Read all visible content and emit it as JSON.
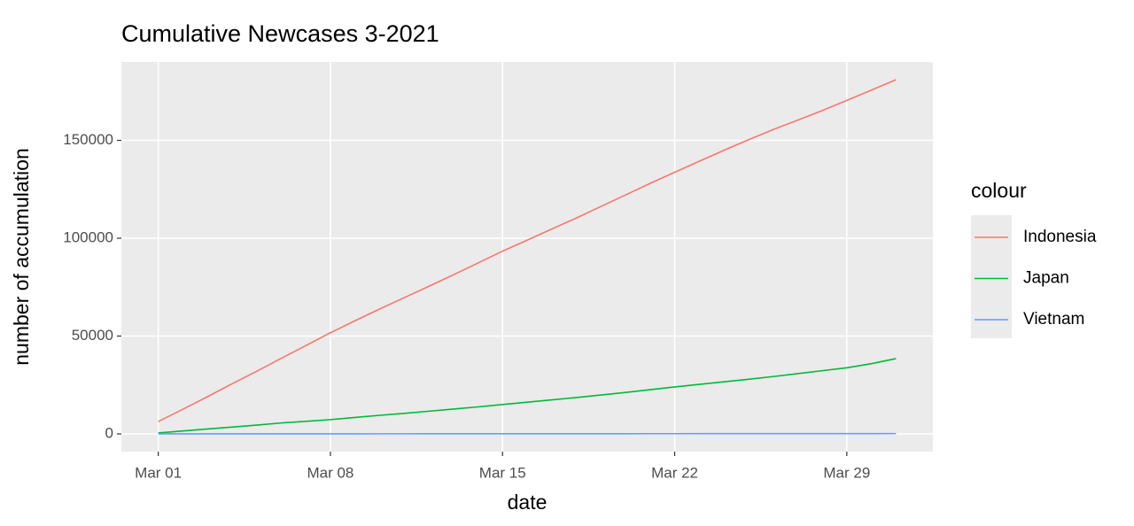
{
  "chart_data": {
    "type": "line",
    "title": "Cumulative Newcases 3-2021",
    "x_label": "date",
    "y_label": "number of accumulation",
    "legend_title": "colour",
    "x": [
      "Mar 01",
      "Mar 02",
      "Mar 03",
      "Mar 04",
      "Mar 05",
      "Mar 06",
      "Mar 07",
      "Mar 08",
      "Mar 09",
      "Mar 10",
      "Mar 11",
      "Mar 12",
      "Mar 13",
      "Mar 14",
      "Mar 15",
      "Mar 16",
      "Mar 17",
      "Mar 18",
      "Mar 19",
      "Mar 20",
      "Mar 21",
      "Mar 22",
      "Mar 23",
      "Mar 24",
      "Mar 25",
      "Mar 26",
      "Mar 27",
      "Mar 28",
      "Mar 29",
      "Mar 30",
      "Mar 31"
    ],
    "xticks": [
      "Mar 01",
      "Mar 08",
      "Mar 15",
      "Mar 22",
      "Mar 29"
    ],
    "ylim": [
      -9050,
      190050
    ],
    "yticks": [
      0,
      50000,
      100000,
      150000
    ],
    "grid": true,
    "legend": "right",
    "series": [
      {
        "name": "Indonesia",
        "color": "#F8766D",
        "values": [
          6300,
          12600,
          19000,
          25600,
          32000,
          38600,
          45100,
          51700,
          57800,
          63800,
          69600,
          75400,
          81300,
          87300,
          93400,
          99000,
          104700,
          110300,
          116200,
          122100,
          128000,
          133700,
          139300,
          144900,
          150300,
          155500,
          160300,
          165200,
          170400,
          175700,
          181000
        ]
      },
      {
        "name": "Japan",
        "color": "#00BA38",
        "values": [
          500,
          1500,
          2500,
          3500,
          4500,
          5600,
          6400,
          7300,
          8400,
          9500,
          10500,
          11600,
          12700,
          13800,
          15000,
          16200,
          17400,
          18600,
          19900,
          21200,
          22600,
          24000,
          25300,
          26600,
          27900,
          29300,
          30800,
          32300,
          33800,
          35900,
          38500
        ]
      },
      {
        "name": "Vietnam",
        "color": "#619CFF",
        "values": [
          10,
          15,
          20,
          25,
          30,
          35,
          40,
          45,
          50,
          55,
          60,
          65,
          70,
          75,
          80,
          85,
          90,
          95,
          100,
          105,
          110,
          115,
          120,
          125,
          130,
          135,
          140,
          145,
          150,
          160,
          170
        ]
      }
    ]
  }
}
